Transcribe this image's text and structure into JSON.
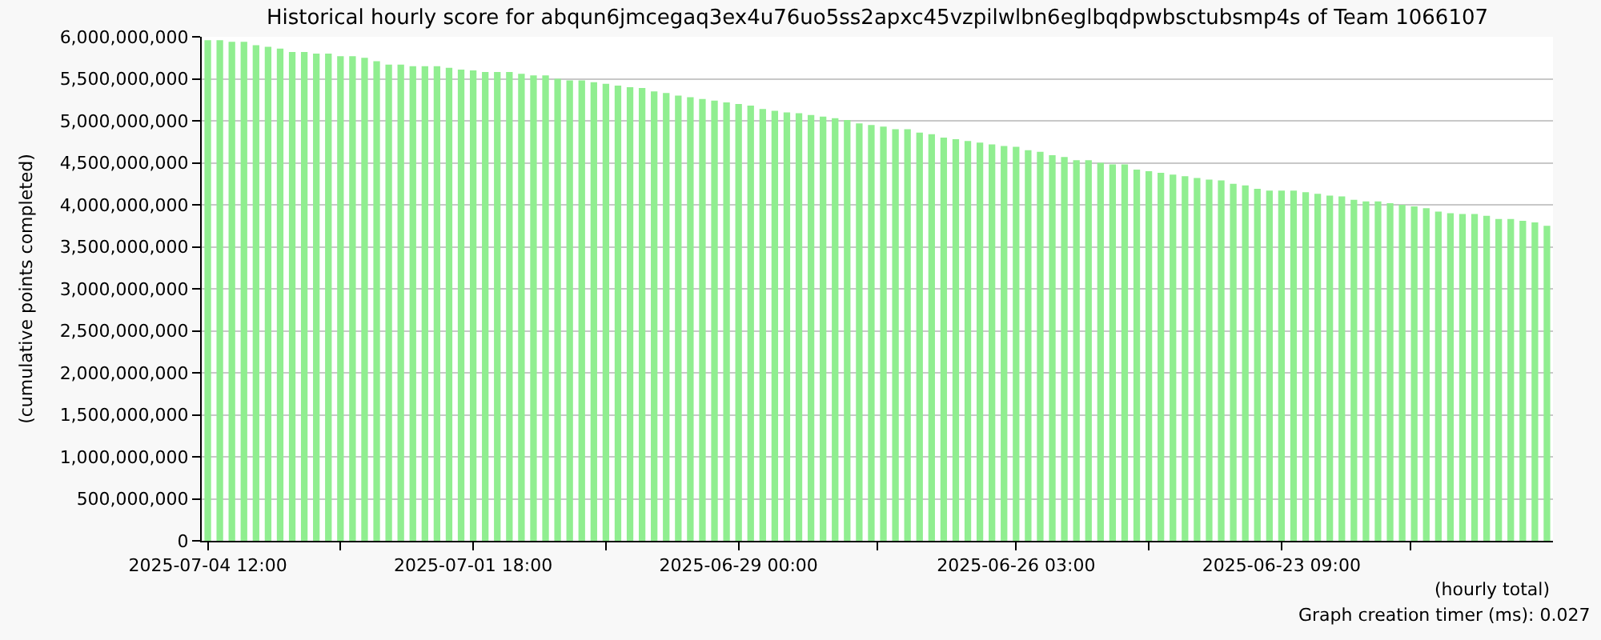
{
  "chart_data": {
    "type": "bar",
    "title": "Historical hourly score for abqun6jmcegaq3ex4u76uo5ss2apxc45vzpilwlbn6eglbqdpwbsctubsmp4s of Team 1066107",
    "xlabel": "(hourly total)",
    "ylabel": "(cumulative points completed)",
    "annotations": [
      "Graph creation timer (ms): 0.027"
    ],
    "x": [
      "2025-07-04T12:00",
      "2025-07-04T09:00",
      "2025-07-04T06:00",
      "2025-07-04T03:00",
      "2025-07-04T00:00",
      "2025-07-03T21:00",
      "2025-07-03T18:00",
      "2025-07-03T15:00",
      "2025-07-03T12:00",
      "2025-07-03T09:00",
      "2025-07-03T06:00",
      "2025-07-03T03:00",
      "2025-07-03T00:00",
      "2025-07-02T21:00",
      "2025-07-02T18:00",
      "2025-07-02T15:00",
      "2025-07-02T12:00",
      "2025-07-02T09:00",
      "2025-07-02T06:00",
      "2025-07-02T03:00",
      "2025-07-02T00:00",
      "2025-07-01T21:00",
      "2025-07-01T18:00",
      "2025-07-01T15:00",
      "2025-07-01T12:00",
      "2025-07-01T09:00",
      "2025-07-01T06:00",
      "2025-07-01T03:00",
      "2025-07-01T00:00",
      "2025-06-30T21:00",
      "2025-06-30T18:00",
      "2025-06-30T15:00",
      "2025-06-30T12:00",
      "2025-06-30T09:00",
      "2025-06-30T06:00",
      "2025-06-30T03:00",
      "2025-06-30T00:00",
      "2025-06-29T21:00",
      "2025-06-29T18:00",
      "2025-06-29T15:00",
      "2025-06-29T12:00",
      "2025-06-29T09:00",
      "2025-06-29T06:00",
      "2025-06-29T03:00",
      "2025-06-29T00:00",
      "2025-06-28T21:00",
      "2025-06-28T18:00",
      "2025-06-28T15:00",
      "2025-06-28T12:00",
      "2025-06-28T09:00",
      "2025-06-28T06:00",
      "2025-06-28T03:00",
      "2025-06-28T00:00",
      "2025-06-27T21:00",
      "2025-06-27T18:00",
      "2025-06-27T15:00",
      "2025-06-27T12:00",
      "2025-06-27T09:00",
      "2025-06-27T06:00",
      "2025-06-27T03:00",
      "2025-06-27T00:00",
      "2025-06-26T21:00",
      "2025-06-26T18:00",
      "2025-06-26T15:00",
      "2025-06-26T12:00",
      "2025-06-26T09:00",
      "2025-06-26T06:00",
      "2025-06-26T03:00",
      "2025-06-26T00:00",
      "2025-06-25T21:00",
      "2025-06-25T18:00",
      "2025-06-25T15:00",
      "2025-06-25T12:00",
      "2025-06-25T09:00",
      "2025-06-25T06:00",
      "2025-06-25T03:00",
      "2025-06-25T00:00",
      "2025-06-24T21:00",
      "2025-06-24T18:00",
      "2025-06-24T15:00",
      "2025-06-24T12:00",
      "2025-06-24T09:00",
      "2025-06-24T06:00",
      "2025-06-24T03:00",
      "2025-06-24T00:00",
      "2025-06-23T21:00",
      "2025-06-23T18:00",
      "2025-06-23T15:00",
      "2025-06-23T12:00",
      "2025-06-23T09:00",
      "2025-06-23T06:00",
      "2025-06-23T03:00",
      "2025-06-23T00:00",
      "2025-06-22T21:00",
      "2025-06-22T18:00",
      "2025-06-22T15:00",
      "2025-06-22T12:00",
      "2025-06-22T09:00",
      "2025-06-22T06:00",
      "2025-06-22T03:00",
      "2025-06-22T00:00",
      "2025-06-21T21:00",
      "2025-06-21T18:00",
      "2025-06-21T15:00",
      "2025-06-21T12:00",
      "2025-06-21T09:00",
      "2025-06-21T06:00",
      "2025-06-21T03:00",
      "2025-06-21T00:00",
      "2025-06-20T21:00",
      "2025-06-20T18:00",
      "2025-06-20T15:00"
    ],
    "values": [
      5960000000,
      5960000000,
      5940000000,
      5940000000,
      5900000000,
      5880000000,
      5860000000,
      5820000000,
      5820000000,
      5800000000,
      5800000000,
      5770000000,
      5770000000,
      5750000000,
      5710000000,
      5670000000,
      5670000000,
      5650000000,
      5650000000,
      5650000000,
      5630000000,
      5610000000,
      5600000000,
      5580000000,
      5580000000,
      5580000000,
      5560000000,
      5540000000,
      5540000000,
      5500000000,
      5480000000,
      5480000000,
      5460000000,
      5440000000,
      5420000000,
      5400000000,
      5390000000,
      5350000000,
      5330000000,
      5300000000,
      5280000000,
      5260000000,
      5240000000,
      5220000000,
      5200000000,
      5180000000,
      5140000000,
      5120000000,
      5100000000,
      5090000000,
      5070000000,
      5050000000,
      5030000000,
      5010000000,
      4970000000,
      4950000000,
      4930000000,
      4900000000,
      4900000000,
      4860000000,
      4840000000,
      4800000000,
      4780000000,
      4760000000,
      4740000000,
      4720000000,
      4700000000,
      4690000000,
      4650000000,
      4630000000,
      4590000000,
      4570000000,
      4530000000,
      4530000000,
      4500000000,
      4480000000,
      4480000000,
      4420000000,
      4400000000,
      4380000000,
      4360000000,
      4340000000,
      4320000000,
      4300000000,
      4290000000,
      4250000000,
      4230000000,
      4190000000,
      4170000000,
      4170000000,
      4170000000,
      4150000000,
      4130000000,
      4110000000,
      4100000000,
      4060000000,
      4040000000,
      4040000000,
      4020000000,
      4000000000,
      3980000000,
      3960000000,
      3920000000,
      3900000000,
      3890000000,
      3890000000,
      3870000000,
      3830000000,
      3830000000,
      3810000000,
      3790000000,
      3750000000
    ],
    "color": "#90ee90",
    "xlim": [
      "2025-07-04T13:30",
      "2025-06-20T13:30"
    ],
    "xticks": [
      {
        "value": "2025-07-04T12:00",
        "label": "2025-07-04 12:00"
      },
      {
        "value": "2025-07-03T03:00",
        "label": null
      },
      {
        "value": "2025-07-01T18:00",
        "label": "2025-07-01 18:00"
      },
      {
        "value": "2025-06-30T09:00",
        "label": null
      },
      {
        "value": "2025-06-29T00:00",
        "label": "2025-06-29 00:00"
      },
      {
        "value": "2025-06-27T13:30",
        "label": null
      },
      {
        "value": "2025-06-26T03:00",
        "label": "2025-06-26 03:00"
      },
      {
        "value": "2025-06-24T18:00",
        "label": null
      },
      {
        "value": "2025-06-23T09:00",
        "label": "2025-06-23 09:00"
      },
      {
        "value": "2025-06-22T01:00",
        "label": null
      }
    ],
    "ylim": [
      0,
      6000000000
    ],
    "yticks": [
      0,
      {
        "value": 500000000,
        "label": "500,000,000"
      },
      {
        "value": 1000000000,
        "label": "1,000,000,000"
      },
      {
        "value": 1500000000,
        "label": "1,500,000,000"
      },
      {
        "value": 2000000000,
        "label": "2,000,000,000"
      },
      {
        "value": 2500000000,
        "label": "2,500,000,000"
      },
      {
        "value": 3000000000,
        "label": "3,000,000,000"
      },
      {
        "value": 3500000000,
        "label": "3,500,000,000"
      },
      {
        "value": 4000000000,
        "label": "4,000,000,000"
      },
      {
        "value": 4500000000,
        "label": "4,500,000,000"
      },
      {
        "value": 5000000000,
        "label": "5,000,000,000"
      },
      {
        "value": 5500000000,
        "label": "5,500,000,000"
      },
      {
        "value": 6000000000,
        "label": "6,000,000,000"
      }
    ],
    "grid": "y"
  }
}
